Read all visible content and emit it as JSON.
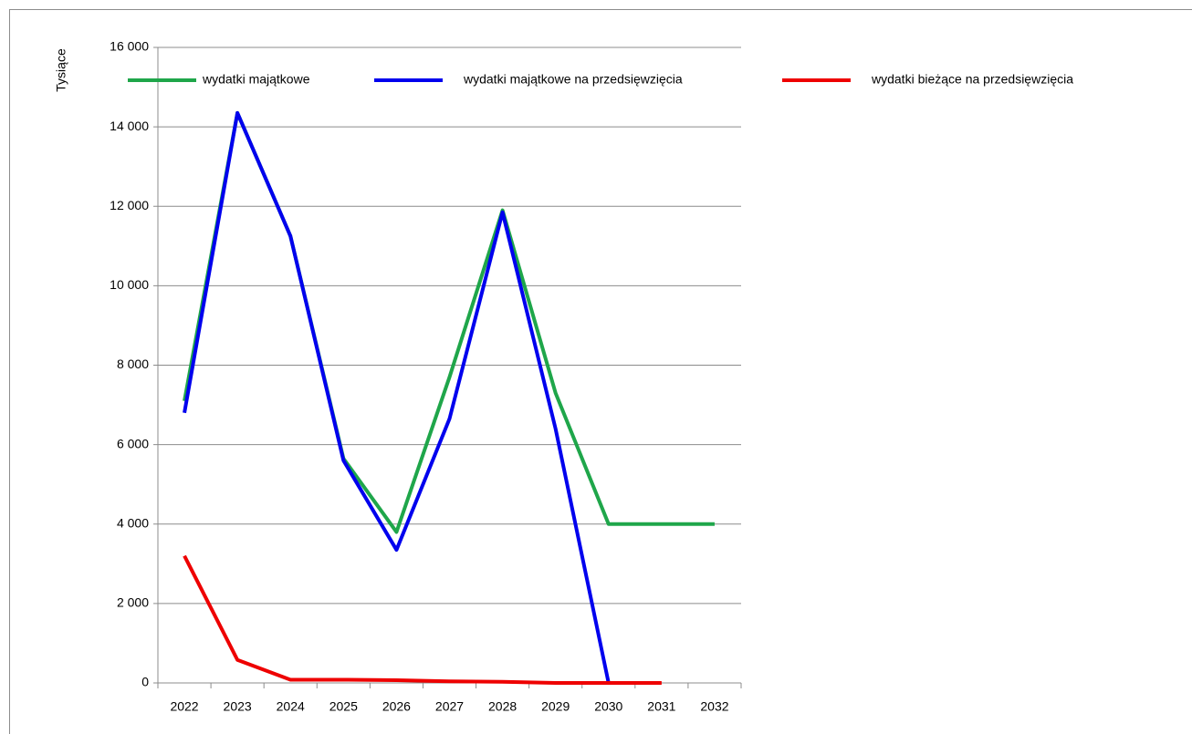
{
  "chart_data": {
    "type": "line",
    "y_label": "Tysiące",
    "categories": [
      "2022",
      "2023",
      "2024",
      "2025",
      "2026",
      "2027",
      "2028",
      "2029",
      "2030",
      "2031",
      "2032"
    ],
    "series": [
      {
        "name": "wydatki majątkowe",
        "color": "#1fa64a",
        "values": [
          7100,
          14350,
          11250,
          5650,
          3800,
          7700,
          11900,
          7300,
          4000,
          4000,
          4000
        ]
      },
      {
        "name": "wydatki majątkowe na przedsięwzięcia",
        "color": "#0000ee",
        "values": [
          6800,
          14350,
          11250,
          5600,
          3350,
          6650,
          11850,
          6400,
          0,
          null,
          null
        ]
      },
      {
        "name": "wydatki bieżące na przedsięwzięcia",
        "color": "#ee0000",
        "values": [
          3200,
          580,
          80,
          80,
          70,
          40,
          30,
          0,
          0,
          0,
          null
        ]
      }
    ],
    "ylim": [
      0,
      16000
    ],
    "yticks": [
      0,
      {
        "value": 2000,
        "label": "2 000"
      },
      {
        "value": 4000,
        "label": "4 000"
      },
      {
        "value": 6000,
        "label": "6 000"
      },
      {
        "value": 8000,
        "label": "8 000"
      },
      {
        "value": 10000,
        "label": "10 000"
      },
      {
        "value": 12000,
        "label": "12 000"
      },
      {
        "value": 14000,
        "label": "14 000"
      },
      {
        "value": 16000,
        "label": "16 000"
      }
    ],
    "grid": true,
    "legend": "top"
  }
}
